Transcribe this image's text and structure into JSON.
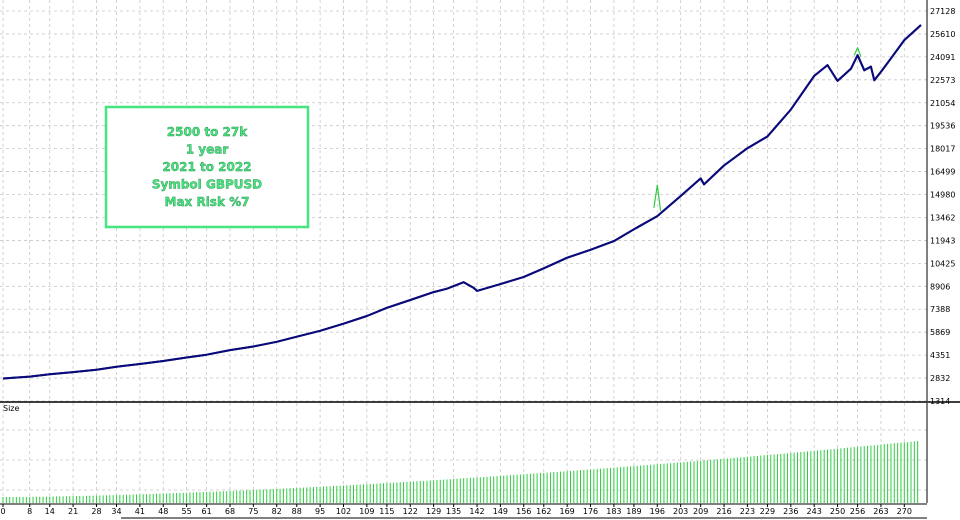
{
  "chart_data": [
    {
      "type": "line",
      "title": "",
      "ylabel": "",
      "xlabel": "",
      "y_ticks": [
        1314,
        2832,
        4351,
        5869,
        7388,
        8906,
        10425,
        11943,
        13462,
        14980,
        16499,
        18017,
        19536,
        21054,
        22573,
        24091,
        25610,
        27128
      ],
      "ylim": [
        1314,
        27128
      ],
      "x_ticks": [
        0,
        8,
        14,
        21,
        28,
        34,
        41,
        48,
        55,
        61,
        68,
        75,
        82,
        88,
        95,
        102,
        109,
        115,
        122,
        129,
        135,
        142,
        149,
        156,
        162,
        169,
        176,
        183,
        189,
        196,
        203,
        209,
        216,
        223,
        229,
        236,
        243,
        250,
        256,
        263,
        270
      ],
      "xlim": [
        0,
        275
      ],
      "grid": true,
      "series": [
        {
          "color": "#0a0a7a",
          "x": [
            0,
            8,
            14,
            21,
            28,
            34,
            41,
            48,
            55,
            61,
            68,
            75,
            82,
            88,
            95,
            102,
            109,
            115,
            122,
            129,
            133,
            138,
            141,
            142,
            149,
            156,
            162,
            169,
            176,
            183,
            189,
            196,
            203,
            209,
            210,
            216,
            223,
            229,
            236,
            243,
            247,
            250,
            252,
            254,
            256,
            258,
            260,
            261,
            263,
            266,
            270,
            275
          ],
          "y": [
            2800,
            2930,
            3090,
            3230,
            3380,
            3580,
            3760,
            3960,
            4190,
            4380,
            4680,
            4920,
            5230,
            5570,
            5960,
            6430,
            6940,
            7480,
            8000,
            8520,
            8750,
            9180,
            8800,
            8600,
            9050,
            9530,
            10100,
            10800,
            11320,
            11900,
            12680,
            13550,
            14880,
            16050,
            15650,
            16900,
            18050,
            18820,
            20600,
            22830,
            23550,
            22500,
            22900,
            23300,
            24200,
            23200,
            23450,
            22550,
            23100,
            24000,
            25200,
            26200
          ]
        },
        {
          "color": "#2ecc40",
          "x": [
            195,
            196,
            197
          ],
          "y": [
            14100,
            15600,
            13900
          ]
        },
        {
          "color": "#2ecc40",
          "x": [
            255,
            256,
            257
          ],
          "y": [
            24200,
            24700,
            24100
          ]
        }
      ],
      "annotations": [
        "2500 to 27k",
        "1 year",
        "2021 to 2022",
        "Symbol GBPUSD",
        "Max Risk %7"
      ]
    },
    {
      "type": "bar",
      "title": "Size",
      "color": "#2ecc40",
      "values_start": 0.06,
      "values_end": 0.62,
      "count": 275
    }
  ]
}
